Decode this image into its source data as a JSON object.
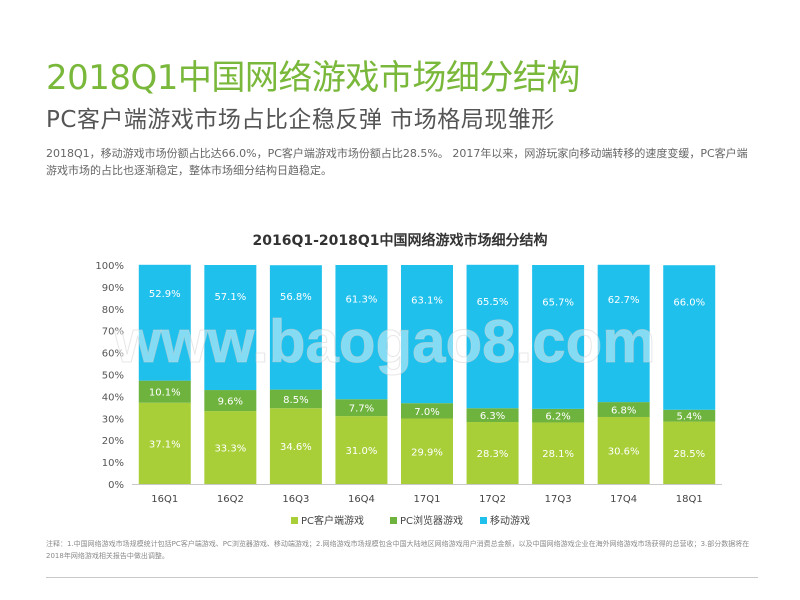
{
  "header": {
    "title": "2018Q1中国网络游戏市场细分结构",
    "subtitle": "PC客户端游戏市场占比企稳反弹 市场格局现雏形"
  },
  "description": "2018Q1，移动游戏市场份额占比达66.0%，PC客户端游戏市场份额占比28.5%。 2017年以来，网游玩家向移动端转移的速度变缓，PC客户端游戏市场的占比也逐渐稳定，整体市场细分结构日趋稳定。",
  "footnote": "注释：1.中国网络游戏市场规模统计包括PC客户端游戏、PC浏览器游戏、移动端游戏；2.网络游戏市场规模包含中国大陆地区网络游戏用户消费总金额，以及中国网络游戏企业在海外网络游戏市场获得的总营收；3.部分数据将在2018年网络游戏相关报告中做出调整。",
  "watermark": "www.baogao8.com",
  "colors": {
    "title_green": "#7ab83b",
    "pc_client": "#a8cf38",
    "pc_browser": "#6fb33f",
    "mobile": "#20c0ec"
  },
  "chart_data": {
    "type": "bar",
    "stacked": true,
    "percent": true,
    "title": "2016Q1-2018Q1中国网络游戏市场细分结构",
    "categories": [
      "16Q1",
      "16Q2",
      "16Q3",
      "16Q4",
      "17Q1",
      "17Q2",
      "17Q3",
      "17Q4",
      "18Q1"
    ],
    "y_ticks": [
      "0%",
      "10%",
      "20%",
      "30%",
      "40%",
      "50%",
      "60%",
      "70%",
      "80%",
      "90%",
      "100%"
    ],
    "ylim": [
      0,
      100
    ],
    "legend_position": "bottom",
    "series": [
      {
        "name": "PC客户端游戏",
        "color": "#a8cf38",
        "values": [
          37.1,
          33.3,
          34.6,
          31.0,
          29.9,
          28.3,
          28.1,
          30.6,
          28.5
        ],
        "labels": [
          "37.1%",
          "33.3%",
          "34.6%",
          "31.0%",
          "29.9%",
          "28.3%",
          "28.1%",
          "30.6%",
          "28.5%"
        ]
      },
      {
        "name": "PC浏览器游戏",
        "color": "#6fb33f",
        "values": [
          10.1,
          9.6,
          8.5,
          7.7,
          7.0,
          6.3,
          6.2,
          6.8,
          5.4
        ],
        "labels": [
          "10.1%",
          "9.6%",
          "8.5%",
          "7.7%",
          "7.0%",
          "6.3%",
          "6.2%",
          "6.8%",
          "5.4%"
        ]
      },
      {
        "name": "移动游戏",
        "color": "#20c0ec",
        "values": [
          52.9,
          57.1,
          56.8,
          61.3,
          63.1,
          65.5,
          65.7,
          62.7,
          66.0
        ],
        "labels": [
          "52.9%",
          "57.1%",
          "56.8%",
          "61.3%",
          "63.1%",
          "65.5%",
          "65.7%",
          "62.7%",
          "66.0%"
        ]
      }
    ]
  }
}
